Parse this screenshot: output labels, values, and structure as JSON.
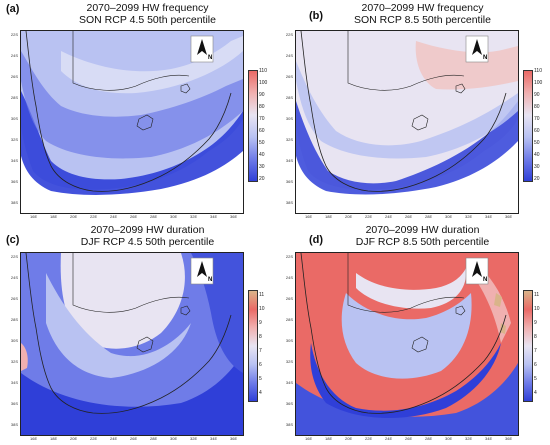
{
  "panels": [
    {
      "letter": "(a)",
      "title1": "2070–2099 HW frequency",
      "title2": "SON RCP 4.5 50th percentile",
      "scheme": "freq45",
      "colorbar": [
        "110",
        "100",
        "90",
        "80",
        "70",
        "60",
        "50",
        "40",
        "30",
        "20"
      ]
    },
    {
      "letter": "(b)",
      "title1": "2070–2099 HW frequency",
      "title2": "SON RCP 8.5 50th percentile",
      "scheme": "freq85",
      "colorbar": [
        "110",
        "100",
        "90",
        "80",
        "70",
        "60",
        "50",
        "40",
        "30",
        "20"
      ]
    },
    {
      "letter": "(c)",
      "title1": "2070–2099 HW duration",
      "title2": "DJF RCP 4.5 50th percentile",
      "scheme": "dur45",
      "colorbar": [
        "11",
        "10",
        "9",
        "8",
        "7",
        "6",
        "5",
        "4"
      ]
    },
    {
      "letter": "(d)",
      "title1": "2070–2099 HW duration",
      "title2": "DJF RCP 8.5 50th percentile",
      "scheme": "dur85",
      "colorbar": [
        "11",
        "10",
        "9",
        "8",
        "7",
        "6",
        "5",
        "4"
      ]
    }
  ],
  "north_label": "N",
  "lat_ticks": [
    "22S",
    "24S",
    "26S",
    "28S",
    "30S",
    "32S",
    "34S",
    "36S",
    "38S"
  ],
  "lon_ticks": [
    "16E",
    "18E",
    "20E",
    "22E",
    "24E",
    "26E",
    "28E",
    "30E",
    "32E",
    "34E",
    "36E"
  ],
  "colors": {
    "deep_blue": "#2f3fd8",
    "mid_blue": "#6f7ce8",
    "light_blue": "#b9c2f2",
    "pale": "#e8e4f2",
    "pink": "#f0b0b0",
    "red": "#ea6a66",
    "tan": "#d9b48a"
  }
}
